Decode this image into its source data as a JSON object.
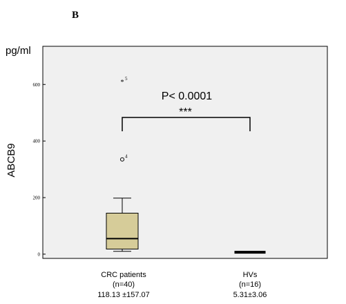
{
  "panel_label": "B",
  "chart_data": {
    "type": "box",
    "unit": "pg/ml",
    "ylabel": "ABCB9",
    "ylim": [
      -15,
      735
    ],
    "yticks": [
      0,
      200,
      400,
      600
    ],
    "grid": false,
    "box_color": "#d6cc99",
    "plot_background": "#f0f0f0",
    "groups": [
      {
        "name": "CRC patients",
        "n": "(n=40)",
        "summary": "118.13 ±157.07",
        "min": 10,
        "q1": 18,
        "median": 55,
        "q3": 145,
        "max": 198,
        "outliers": [
          {
            "value": 335,
            "symbol": "o",
            "id": "4"
          },
          {
            "value": 610,
            "symbol": "*",
            "id": "5"
          }
        ]
      },
      {
        "name": "HVs",
        "n": "(n=16)",
        "summary": "5.31±3.06",
        "min": 3,
        "q1": 4,
        "median": 6,
        "q3": 8,
        "max": 9,
        "outliers": []
      }
    ],
    "annotation": {
      "pvalue_text": "P< 0.0001",
      "stars": "***"
    }
  }
}
